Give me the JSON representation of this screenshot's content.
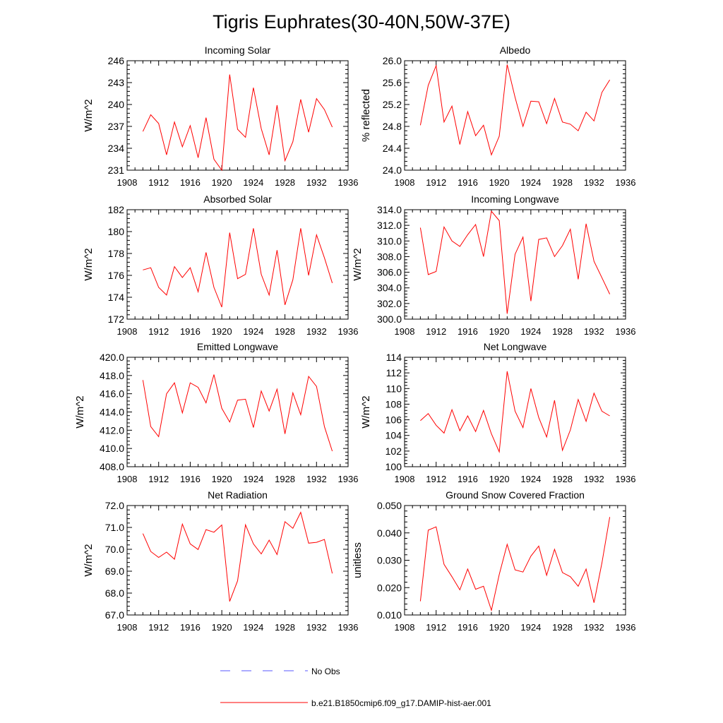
{
  "figure": {
    "title": "Tigris Euphrates(30-40N,50W-37E)"
  },
  "legend": {
    "obs_label": "No Obs",
    "model_label": "b.e21.B1850cmip6.f09_g17.DAMIP-hist-aer.001",
    "obs_color": "#5a5aff",
    "model_color": "#ff0000"
  },
  "chart_data": [
    {
      "type": "line",
      "title": "Incoming Solar",
      "ylabel": "W/m^2",
      "xlim": [
        1908,
        1936
      ],
      "ylim": [
        231,
        246
      ],
      "xticks": [
        "1908",
        "1912",
        "1916",
        "1920",
        "1924",
        "1928",
        "1932",
        "1936"
      ],
      "yticks": [
        "231",
        "234",
        "237",
        "240",
        "243",
        "246"
      ],
      "x": [
        1910,
        1911,
        1912,
        1913,
        1914,
        1915,
        1916,
        1917,
        1918,
        1919,
        1920,
        1921,
        1922,
        1923,
        1924,
        1925,
        1926,
        1927,
        1928,
        1929,
        1930,
        1931,
        1932,
        1933,
        1934
      ],
      "series": [
        {
          "color": "#ff0000",
          "values": [
            236.3,
            238.6,
            237.4,
            233.1,
            237.6,
            234.2,
            237.1,
            232.7,
            238.2,
            232.5,
            231.0,
            244.1,
            236.6,
            235.5,
            242.3,
            236.7,
            233.1,
            239.9,
            232.3,
            234.9,
            240.7,
            236.2,
            240.8,
            239.3,
            236.9
          ]
        }
      ]
    },
    {
      "type": "line",
      "title": "Albedo",
      "ylabel": "% reflected",
      "xlim": [
        1908,
        1936
      ],
      "ylim": [
        24.0,
        26.0
      ],
      "xticks": [
        "1908",
        "1912",
        "1916",
        "1920",
        "1924",
        "1928",
        "1932",
        "1936"
      ],
      "yticks": [
        "24.0",
        "24.4",
        "24.8",
        "25.2",
        "25.6",
        "26.0"
      ],
      "x": [
        1910,
        1911,
        1912,
        1913,
        1914,
        1915,
        1916,
        1917,
        1918,
        1919,
        1920,
        1921,
        1922,
        1923,
        1924,
        1925,
        1926,
        1927,
        1928,
        1929,
        1930,
        1931,
        1932,
        1933,
        1934
      ],
      "series": [
        {
          "color": "#ff0000",
          "values": [
            24.82,
            25.55,
            25.91,
            24.88,
            25.17,
            24.47,
            25.07,
            24.63,
            24.82,
            24.28,
            24.62,
            25.93,
            25.33,
            24.8,
            25.26,
            25.25,
            24.85,
            25.31,
            24.88,
            24.84,
            24.72,
            25.06,
            24.9,
            25.42,
            25.65
          ]
        }
      ]
    },
    {
      "type": "line",
      "title": "Absorbed Solar",
      "ylabel": "W/m^2",
      "xlim": [
        1908,
        1936
      ],
      "ylim": [
        172,
        182
      ],
      "xticks": [
        "1908",
        "1912",
        "1916",
        "1920",
        "1924",
        "1928",
        "1932",
        "1936"
      ],
      "yticks": [
        "172",
        "174",
        "176",
        "178",
        "180",
        "182"
      ],
      "x": [
        1910,
        1911,
        1912,
        1913,
        1914,
        1915,
        1916,
        1917,
        1918,
        1919,
        1920,
        1921,
        1922,
        1923,
        1924,
        1925,
        1926,
        1927,
        1928,
        1929,
        1930,
        1931,
        1932,
        1933,
        1934
      ],
      "series": [
        {
          "color": "#ff0000",
          "values": [
            176.5,
            176.7,
            174.9,
            174.2,
            176.8,
            175.8,
            176.7,
            174.5,
            178.1,
            174.9,
            173.1,
            179.9,
            175.7,
            176.1,
            180.3,
            176.1,
            174.2,
            178.3,
            173.3,
            175.6,
            180.3,
            176.0,
            179.7,
            177.6,
            175.3
          ]
        }
      ]
    },
    {
      "type": "line",
      "title": "Incoming Longwave",
      "ylabel": "W/m^2",
      "xlim": [
        1908,
        1936
      ],
      "ylim": [
        300.0,
        314.0
      ],
      "xticks": [
        "1908",
        "1912",
        "1916",
        "1920",
        "1924",
        "1928",
        "1932",
        "1936"
      ],
      "yticks": [
        "300.0",
        "302.0",
        "304.0",
        "306.0",
        "308.0",
        "310.0",
        "312.0",
        "314.0"
      ],
      "x": [
        1910,
        1911,
        1912,
        1913,
        1914,
        1915,
        1916,
        1917,
        1918,
        1919,
        1920,
        1921,
        1922,
        1923,
        1924,
        1925,
        1926,
        1927,
        1928,
        1929,
        1930,
        1931,
        1932,
        1933,
        1934
      ],
      "series": [
        {
          "color": "#ff0000",
          "values": [
            311.7,
            305.7,
            306.1,
            311.8,
            310.0,
            309.3,
            310.8,
            312.1,
            308.0,
            313.8,
            312.6,
            300.7,
            308.3,
            310.5,
            302.3,
            310.2,
            310.4,
            308.0,
            309.4,
            311.5,
            305.1,
            312.2,
            307.4,
            305.3,
            303.2
          ]
        }
      ]
    },
    {
      "type": "line",
      "title": "Emitted Longwave",
      "ylabel": "W/m^2",
      "xlim": [
        1908,
        1936
      ],
      "ylim": [
        408.0,
        420.0
      ],
      "xticks": [
        "1908",
        "1912",
        "1916",
        "1920",
        "1924",
        "1928",
        "1932",
        "1936"
      ],
      "yticks": [
        "408.0",
        "410.0",
        "412.0",
        "414.0",
        "416.0",
        "418.0",
        "420.0"
      ],
      "x": [
        1910,
        1911,
        1912,
        1913,
        1914,
        1915,
        1916,
        1917,
        1918,
        1919,
        1920,
        1921,
        1922,
        1923,
        1924,
        1925,
        1926,
        1927,
        1928,
        1929,
        1930,
        1931,
        1932,
        1933,
        1934
      ],
      "series": [
        {
          "color": "#ff0000",
          "values": [
            417.5,
            412.4,
            411.3,
            416.0,
            417.2,
            413.9,
            417.2,
            416.7,
            415.0,
            418.1,
            414.4,
            412.9,
            415.3,
            415.4,
            412.3,
            416.3,
            414.1,
            416.5,
            411.6,
            416.1,
            413.7,
            417.9,
            416.8,
            412.4,
            409.7
          ]
        }
      ]
    },
    {
      "type": "line",
      "title": "Net Longwave",
      "ylabel": "W/m^2",
      "xlim": [
        1908,
        1936
      ],
      "ylim": [
        100,
        114
      ],
      "xticks": [
        "1908",
        "1912",
        "1916",
        "1920",
        "1924",
        "1928",
        "1932",
        "1936"
      ],
      "yticks": [
        "100",
        "102",
        "104",
        "106",
        "108",
        "110",
        "112",
        "114"
      ],
      "x": [
        1910,
        1911,
        1912,
        1913,
        1914,
        1915,
        1916,
        1917,
        1918,
        1919,
        1920,
        1921,
        1922,
        1923,
        1924,
        1925,
        1926,
        1927,
        1928,
        1929,
        1930,
        1931,
        1932,
        1933,
        1934
      ],
      "series": [
        {
          "color": "#ff0000",
          "values": [
            105.9,
            106.8,
            105.3,
            104.3,
            107.3,
            104.6,
            106.5,
            104.5,
            107.2,
            104.2,
            101.9,
            112.2,
            107.1,
            105.0,
            110.0,
            106.3,
            103.8,
            108.5,
            102.1,
            104.7,
            108.6,
            105.8,
            109.4,
            107.1,
            106.5
          ]
        }
      ]
    },
    {
      "type": "line",
      "title": "Net Radiation",
      "ylabel": "W/m^2",
      "xlim": [
        1908,
        1936
      ],
      "ylim": [
        67.0,
        72.0
      ],
      "xticks": [
        "1908",
        "1912",
        "1916",
        "1920",
        "1924",
        "1928",
        "1932",
        "1936"
      ],
      "yticks": [
        "67.0",
        "68.0",
        "69.0",
        "70.0",
        "71.0",
        "72.0"
      ],
      "x": [
        1910,
        1911,
        1912,
        1913,
        1914,
        1915,
        1916,
        1917,
        1918,
        1919,
        1920,
        1921,
        1922,
        1923,
        1924,
        1925,
        1926,
        1927,
        1928,
        1929,
        1930,
        1931,
        1932,
        1933,
        1934
      ],
      "series": [
        {
          "color": "#ff0000",
          "values": [
            70.72,
            69.9,
            69.63,
            69.87,
            69.55,
            71.15,
            70.25,
            69.99,
            70.9,
            70.78,
            71.11,
            67.62,
            68.56,
            71.12,
            70.25,
            69.79,
            70.42,
            69.76,
            71.26,
            70.96,
            71.69,
            70.28,
            70.32,
            70.45,
            68.9
          ]
        }
      ]
    },
    {
      "type": "line",
      "title": "Ground Snow Covered Fraction",
      "ylabel": "unitless",
      "xlim": [
        1908,
        1936
      ],
      "ylim": [
        0.01,
        0.05
      ],
      "xticks": [
        "1908",
        "1912",
        "1916",
        "1920",
        "1924",
        "1928",
        "1932",
        "1936"
      ],
      "yticks": [
        "0.010",
        "0.020",
        "0.030",
        "0.040",
        "0.050"
      ],
      "x": [
        1910,
        1911,
        1912,
        1913,
        1914,
        1915,
        1916,
        1917,
        1918,
        1919,
        1920,
        1921,
        1922,
        1923,
        1924,
        1925,
        1926,
        1927,
        1928,
        1929,
        1930,
        1931,
        1932,
        1933,
        1934
      ],
      "series": [
        {
          "color": "#ff0000",
          "values": [
            0.015,
            0.041,
            0.0422,
            0.0285,
            0.024,
            0.0192,
            0.0268,
            0.0194,
            0.0205,
            0.0117,
            0.0248,
            0.0358,
            0.0265,
            0.0257,
            0.0315,
            0.0352,
            0.0245,
            0.034,
            0.0255,
            0.024,
            0.0205,
            0.0268,
            0.0145,
            0.029,
            0.0458
          ]
        }
      ]
    }
  ]
}
